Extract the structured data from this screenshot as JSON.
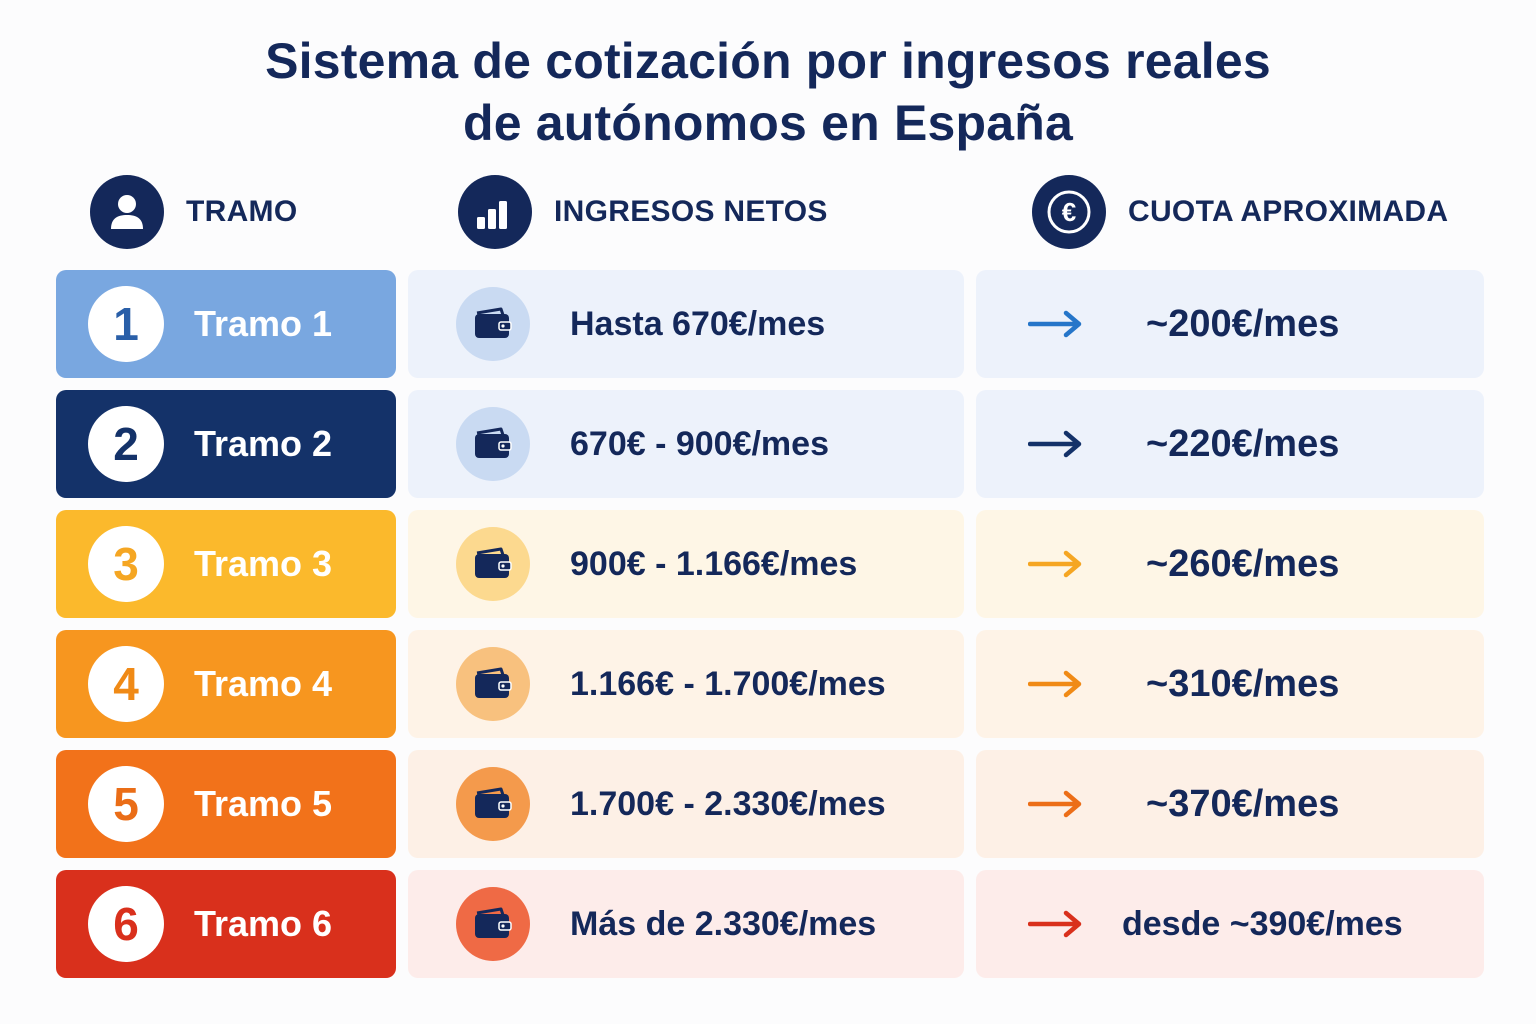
{
  "title": {
    "line1": "Sistema de cotización por ingresos reales",
    "line2": "de autónomos en España"
  },
  "headers": {
    "tramo": {
      "label": "TRAMO",
      "icon": "user-icon"
    },
    "ingresos": {
      "label": "INGRESOS NETOS",
      "icon": "bar-chart-icon"
    },
    "cuota": {
      "label": "CUOTA APROXIMADA",
      "icon": "euro-icon"
    }
  },
  "rows": [
    {
      "number": "1",
      "label": "Tramo 1",
      "income": "Hasta 670€/mes",
      "cuota": "~200€/mes",
      "colors": {
        "badge": "#79a7e0",
        "numText": "#2a5fa8",
        "rowBg": "#edf2fb",
        "walletBg": "#c9daf2",
        "arrow": "#2676c9"
      }
    },
    {
      "number": "2",
      "label": "Tramo 2",
      "income": "670€ - 900€/mes",
      "cuota": "~220€/mes",
      "colors": {
        "badge": "#143269",
        "numText": "#143269",
        "rowBg": "#edf2fb",
        "walletBg": "#c9daf2",
        "arrow": "#143269"
      }
    },
    {
      "number": "3",
      "label": "Tramo 3",
      "income": "900€ - 1.166€/mes",
      "cuota": "~260€/mes",
      "colors": {
        "badge": "#fbb92c",
        "numText": "#f5a623",
        "rowBg": "#fef6e6",
        "walletBg": "#fcd98f",
        "arrow": "#f5a623"
      }
    },
    {
      "number": "4",
      "label": "Tramo 4",
      "income": "1.166€ - 1.700€/mes",
      "cuota": "~310€/mes",
      "colors": {
        "badge": "#f7961f",
        "numText": "#f08a16",
        "rowBg": "#fef3e7",
        "walletBg": "#f8c17e",
        "arrow": "#f08a16"
      }
    },
    {
      "number": "5",
      "label": "Tramo 5",
      "income": "1.700€ - 2.330€/mes",
      "cuota": "~370€/mes",
      "colors": {
        "badge": "#f2721a",
        "numText": "#ea6d17",
        "rowBg": "#fdf0e6",
        "walletBg": "#f49a4c",
        "arrow": "#ec6e18"
      }
    },
    {
      "number": "6",
      "label": "Tramo 6",
      "income": "Más de 2.330€/mes",
      "cuota": "desde ~390€/mes",
      "colors": {
        "badge": "#d9301c",
        "numText": "#d9301c",
        "rowBg": "#fdecea",
        "walletBg": "#ef6a45",
        "arrow": "#d9301c"
      }
    }
  ]
}
